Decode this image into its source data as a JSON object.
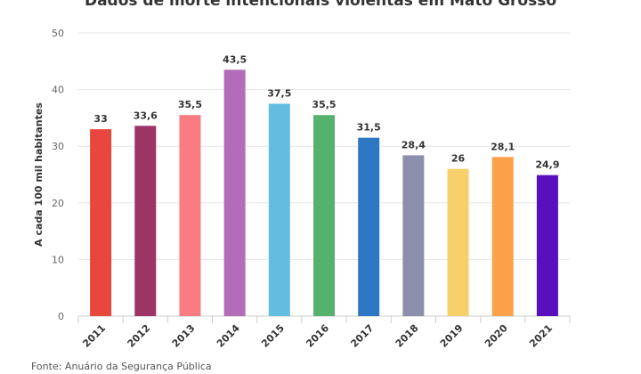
{
  "chart_data": {
    "type": "bar",
    "title": "Dados de morte intencionais violentas em Mato Grosso",
    "ylabel": "A cada 100 mil habitantes",
    "xlabel": "",
    "ylim": [
      0,
      50
    ],
    "yticks": [
      "0",
      "10",
      "20",
      "30",
      "40",
      "50"
    ],
    "grid": true,
    "categories": [
      "2011",
      "2012",
      "2013",
      "2014",
      "2015",
      "2016",
      "2017",
      "2018",
      "2019",
      "2020",
      "2021"
    ],
    "values": [
      33,
      33.6,
      35.5,
      43.5,
      37.5,
      35.5,
      31.5,
      28.4,
      26,
      28.1,
      24.9
    ],
    "value_labels": [
      "33",
      "33,6",
      "35,5",
      "43,5",
      "37,5",
      "35,5",
      "31,5",
      "28,4",
      "26",
      "28,1",
      "24,9"
    ],
    "colors": [
      "#e8473e",
      "#9c3465",
      "#f97c82",
      "#b36cb7",
      "#62bde0",
      "#55b26e",
      "#2d77c2",
      "#8b8fad",
      "#f7cf6b",
      "#fba14a",
      "#5a0fbf"
    ]
  },
  "source": "Fonte: Anuário da Segurança Pública"
}
